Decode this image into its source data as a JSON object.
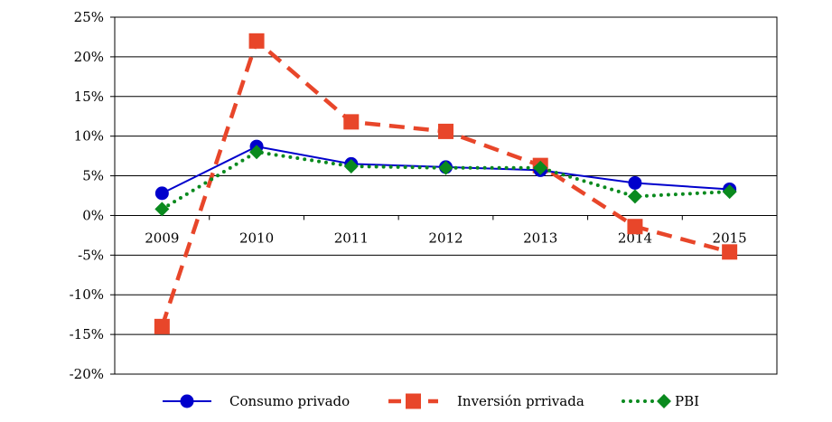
{
  "chart_data": {
    "type": "line",
    "title": "",
    "xlabel": "",
    "ylabel": "",
    "x": [
      "2009",
      "2010",
      "2011",
      "2012",
      "2013",
      "2014",
      "2015"
    ],
    "ylim": [
      -20,
      25
    ],
    "yticks": [
      25,
      20,
      15,
      10,
      5,
      0,
      -5,
      -10,
      -15,
      -20
    ],
    "ytick_labels": [
      "25%",
      "20%",
      "15%",
      "10%",
      "5%",
      "0%",
      "-5%",
      "-10%",
      "-15%",
      "-20%"
    ],
    "grid": true,
    "legend_position": "bottom",
    "series": [
      {
        "name": "Consumo privado",
        "values": [
          2.8,
          8.7,
          6.5,
          6.1,
          5.7,
          4.1,
          3.3
        ],
        "color": "#0000cc",
        "marker": "circle",
        "line_style": "solid"
      },
      {
        "name": "Inversión prrivada",
        "values": [
          -14.0,
          22.0,
          11.8,
          10.6,
          6.3,
          -1.4,
          -4.6
        ],
        "color": "#e8462a",
        "marker": "square",
        "line_style": "dashed"
      },
      {
        "name": "PBI",
        "values": [
          0.8,
          8.0,
          6.2,
          6.0,
          6.0,
          2.4,
          3.0
        ],
        "color": "#0a8a1e",
        "marker": "diamond",
        "line_style": "dotted"
      }
    ]
  }
}
